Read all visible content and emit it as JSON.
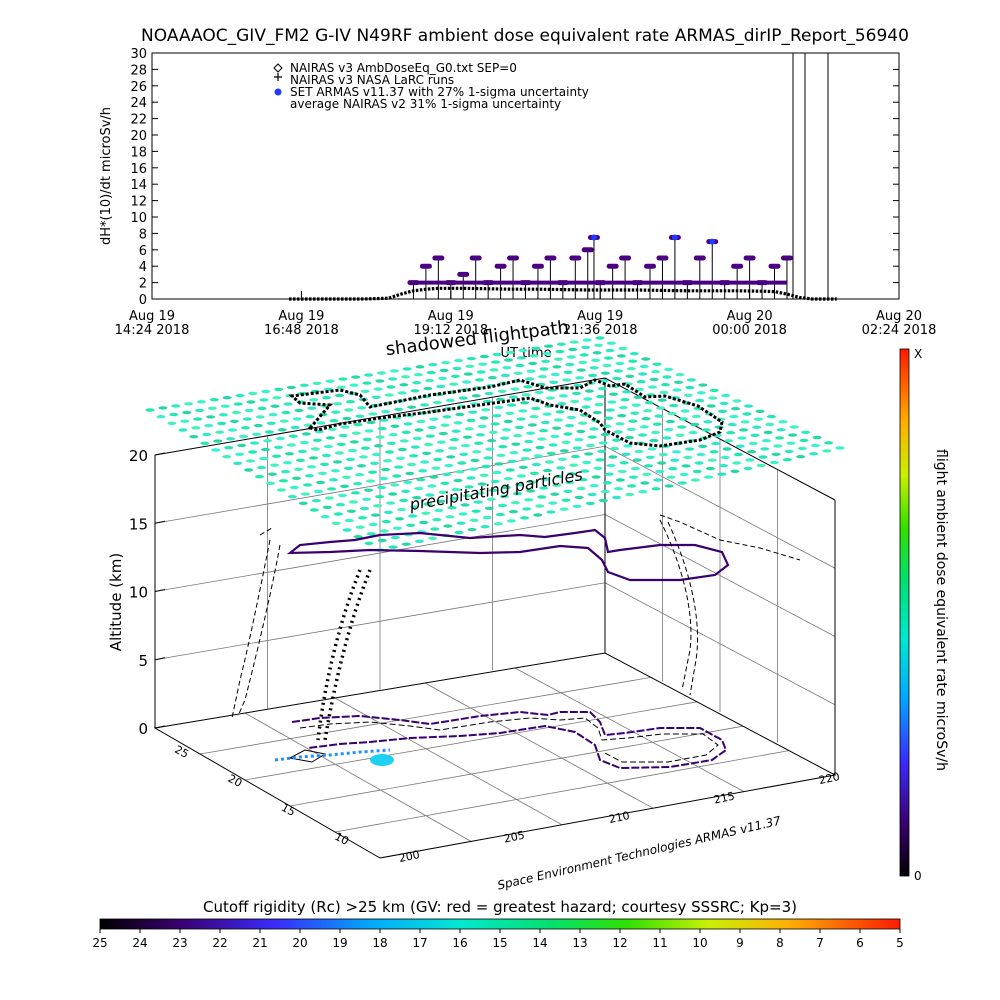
{
  "title": "NOAAAOC_GIV_FM2 G-IV   N49RF  ambient dose equivalent rate ARMAS_dirIP_Report_56940",
  "colors": {
    "background": "#ffffff",
    "axis": "#000000",
    "purple": "#4b0082",
    "blue": "#1e3cff",
    "cyan": "#00e5c8"
  },
  "chart_data": [
    {
      "type": "scatter",
      "ylabel": "dH*(10)/dt microSv/h",
      "xlabel": "UT time",
      "ylim": [
        0,
        30
      ],
      "yticks": [
        "0",
        "2",
        "4",
        "6",
        "8",
        "10",
        "12",
        "14",
        "16",
        "18",
        "20",
        "22",
        "24",
        "26",
        "28",
        "30"
      ],
      "xlim_hours": [
        14.4,
        26.4
      ],
      "xticks": [
        {
          "h": 14.4,
          "l1": "Aug 19",
          "l2": "14:24 2018"
        },
        {
          "h": 16.8,
          "l1": "Aug 19",
          "l2": "16:48 2018"
        },
        {
          "h": 19.2,
          "l1": "Aug 19",
          "l2": "19:12 2018"
        },
        {
          "h": 21.6,
          "l1": "Aug 19",
          "l2": "21:36 2018"
        },
        {
          "h": 24.0,
          "l1": "Aug 20",
          "l2": "00:00 2018"
        },
        {
          "h": 26.4,
          "l1": "Aug 20",
          "l2": "02:24 2018"
        }
      ],
      "legend": [
        "NAIRAS v3 AmbDoseEq_G0.txt SEP=0",
        "NAIRAS v3 NASA LaRC runs",
        "SET ARMAS v11.37 with 27% 1-sigma uncertainty",
        "average NAIRAS v2 31% 1-sigma uncertainty"
      ],
      "series": [
        {
          "name": "NAIRAS v3 AmbDoseEq_G0.txt SEP=0",
          "x": [
            16.6,
            17.0,
            17.4,
            17.8,
            18.2,
            18.4,
            18.6,
            18.8,
            19.0,
            19.4,
            19.8,
            20.2,
            20.6,
            21.0,
            21.4,
            21.8,
            22.2,
            22.6,
            23.0,
            23.4,
            23.8,
            24.2,
            24.4,
            24.6,
            24.8,
            25.0,
            25.4
          ],
          "y": [
            0,
            0,
            0,
            0,
            0.1,
            0.6,
            1.0,
            1.2,
            1.3,
            1.3,
            1.25,
            1.2,
            1.2,
            1.15,
            1.1,
            1.1,
            1.1,
            1.05,
            1.0,
            1.0,
            1.0,
            0.95,
            0.9,
            0.6,
            0.2,
            0,
            0
          ]
        },
        {
          "name": "SET ARMAS v11.37 with 27% 1-sigma uncertainty",
          "x": [
            18.6,
            18.8,
            19.0,
            19.2,
            19.4,
            19.6,
            19.8,
            20.0,
            20.2,
            20.4,
            20.6,
            20.8,
            21.0,
            21.2,
            21.4,
            21.5,
            21.6,
            21.8,
            22.0,
            22.2,
            22.4,
            22.6,
            22.8,
            23.0,
            23.2,
            23.4,
            23.6,
            23.8,
            24.0,
            24.2,
            24.4,
            24.6
          ],
          "y": [
            2,
            4,
            5,
            2,
            3,
            5,
            2,
            4,
            5,
            2,
            4,
            5,
            2,
            5,
            6,
            7.5,
            2,
            4,
            5,
            2,
            4,
            5,
            7.5,
            2,
            5,
            7,
            2,
            4,
            5,
            2,
            4,
            5
          ]
        }
      ]
    },
    {
      "type": "scatter3d",
      "title": "shadowed flightpath",
      "zlabel": "Altitude (km)",
      "zlim": [
        0,
        20
      ],
      "zticks": [
        "0",
        "5",
        "10",
        "15",
        "20"
      ],
      "xticks": [
        "200",
        "205",
        "210",
        "215",
        "220"
      ],
      "yticks": [
        "10",
        "15",
        "20",
        "25"
      ],
      "annotation": "precipitating particles",
      "credit": "Space Environment Technologies ARMAS v11.37",
      "colorbar_label": "flight ambient dose equivalent rate microSv/h",
      "colorbar_top": "X",
      "colorbar_bottom": "0"
    },
    {
      "type": "colorbar",
      "title": "Cutoff rigidity (Rc) >25 km (GV: red = greatest hazard; courtesy SSSRC; Kp=3)",
      "ticks": [
        "25",
        "24",
        "23",
        "22",
        "21",
        "20",
        "19",
        "18",
        "17",
        "16",
        "15",
        "14",
        "13",
        "12",
        "11",
        "10",
        "9",
        "8",
        "7",
        "6",
        "5"
      ]
    }
  ]
}
